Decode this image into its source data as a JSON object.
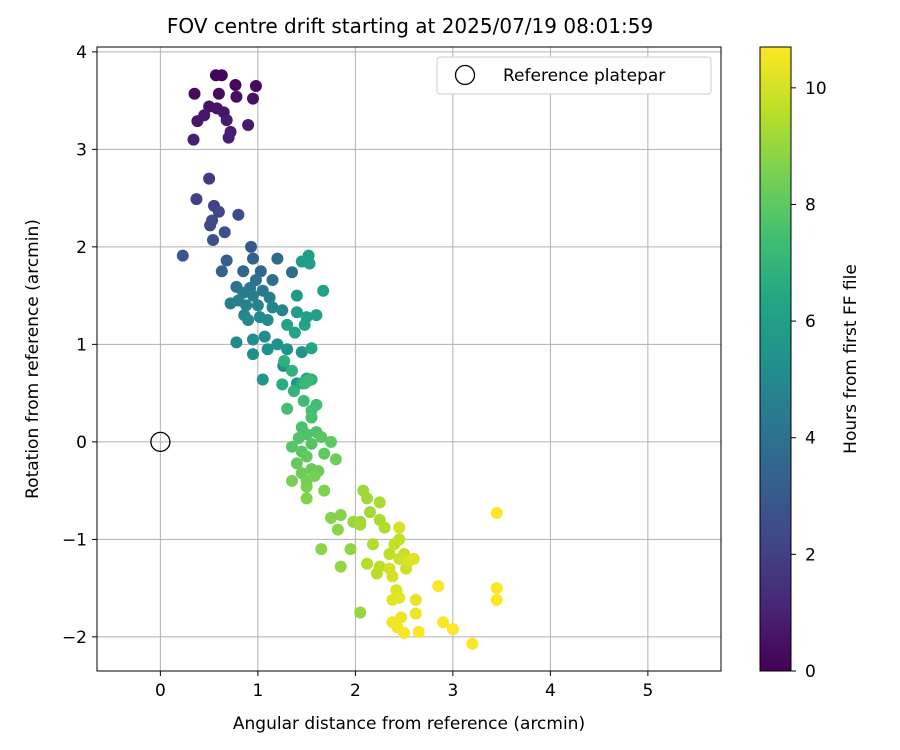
{
  "chart_data": {
    "type": "scatter",
    "title": "FOV centre drift starting at 2025/07/19 08:01:59",
    "xlabel": "Angular distance from reference (arcmin)",
    "ylabel": "Rotation from reference (arcmin)",
    "xlim": [
      -0.65,
      5.75
    ],
    "ylim": [
      -2.35,
      4.05
    ],
    "xticks": [
      0,
      1,
      2,
      3,
      4,
      5
    ],
    "xtick_labels": [
      "0",
      "1",
      "2",
      "3",
      "4",
      "5"
    ],
    "yticks": [
      -2,
      -1,
      0,
      1,
      2,
      3,
      4
    ],
    "ytick_labels": [
      "−2",
      "−1",
      "0",
      "1",
      "2",
      "3",
      "4"
    ],
    "grid": true,
    "legend": {
      "placement": "top-right",
      "label": "Reference platepar"
    },
    "reference_point": {
      "x": 0,
      "y": 0
    },
    "colorbar": {
      "label": "Hours from first FF file",
      "colormap": "viridis",
      "range": [
        0,
        10.7
      ],
      "ticks": [
        0,
        2,
        4,
        6,
        8,
        10
      ],
      "tick_labels": [
        "0",
        "2",
        "4",
        "6",
        "8",
        "10"
      ]
    },
    "points": [
      [
        0.57,
        3.76,
        0.1
      ],
      [
        0.63,
        3.76,
        0.15
      ],
      [
        0.77,
        3.66,
        0.2
      ],
      [
        0.98,
        3.65,
        0.25
      ],
      [
        0.35,
        3.57,
        0.3
      ],
      [
        0.6,
        3.57,
        0.35
      ],
      [
        0.78,
        3.54,
        0.4
      ],
      [
        0.95,
        3.52,
        0.45
      ],
      [
        0.5,
        3.44,
        0.5
      ],
      [
        0.58,
        3.42,
        0.55
      ],
      [
        0.65,
        3.38,
        0.6
      ],
      [
        0.45,
        3.35,
        0.65
      ],
      [
        0.38,
        3.29,
        0.7
      ],
      [
        0.68,
        3.3,
        0.75
      ],
      [
        0.9,
        3.25,
        0.8
      ],
      [
        0.72,
        3.18,
        0.85
      ],
      [
        0.7,
        3.12,
        0.9
      ],
      [
        0.34,
        3.1,
        0.95
      ],
      [
        0.5,
        2.7,
        1.8
      ],
      [
        0.37,
        2.49,
        2.0
      ],
      [
        0.55,
        2.42,
        2.1
      ],
      [
        0.6,
        2.36,
        2.2
      ],
      [
        0.53,
        2.27,
        2.3
      ],
      [
        0.51,
        2.22,
        2.35
      ],
      [
        0.8,
        2.33,
        2.5
      ],
      [
        0.66,
        2.15,
        2.6
      ],
      [
        0.54,
        2.07,
        2.7
      ],
      [
        0.23,
        1.91,
        2.8
      ],
      [
        0.93,
        2.0,
        3.0
      ],
      [
        0.68,
        1.86,
        3.2
      ],
      [
        0.95,
        1.88,
        3.3
      ],
      [
        0.63,
        1.75,
        3.4
      ],
      [
        0.85,
        1.75,
        3.5
      ],
      [
        1.03,
        1.75,
        3.6
      ],
      [
        1.2,
        1.88,
        3.7
      ],
      [
        1.35,
        1.74,
        3.8
      ],
      [
        1.15,
        1.66,
        3.9
      ],
      [
        0.98,
        1.66,
        4.0
      ],
      [
        0.78,
        1.59,
        4.1
      ],
      [
        0.92,
        1.58,
        4.2
      ],
      [
        1.05,
        1.55,
        4.3
      ],
      [
        0.85,
        1.53,
        4.4
      ],
      [
        0.95,
        1.5,
        4.5
      ],
      [
        1.12,
        1.48,
        4.55
      ],
      [
        0.72,
        1.42,
        4.6
      ],
      [
        0.8,
        1.45,
        4.65
      ],
      [
        0.88,
        1.4,
        4.7
      ],
      [
        1.0,
        1.4,
        4.75
      ],
      [
        1.15,
        1.38,
        4.8
      ],
      [
        1.25,
        1.35,
        4.85
      ],
      [
        0.86,
        1.3,
        4.9
      ],
      [
        0.9,
        1.25,
        4.95
      ],
      [
        1.02,
        1.28,
        5.0
      ],
      [
        1.1,
        1.25,
        5.05
      ],
      [
        0.78,
        1.02,
        5.1
      ],
      [
        0.95,
        1.05,
        5.15
      ],
      [
        1.07,
        1.08,
        5.2
      ],
      [
        0.95,
        0.9,
        5.25
      ],
      [
        1.1,
        0.95,
        5.3
      ],
      [
        1.2,
        1.0,
        5.35
      ],
      [
        1.26,
        0.78,
        5.4
      ],
      [
        1.3,
        0.95,
        5.45
      ],
      [
        1.05,
        0.64,
        5.5
      ],
      [
        1.45,
        0.92,
        5.55
      ],
      [
        1.4,
        0.6,
        5.6
      ],
      [
        1.4,
        1.5,
        5.7
      ],
      [
        1.45,
        1.85,
        5.8
      ],
      [
        1.52,
        1.91,
        5.85
      ],
      [
        1.53,
        1.83,
        5.9
      ],
      [
        1.4,
        1.33,
        5.95
      ],
      [
        1.5,
        1.28,
        6.0
      ],
      [
        1.6,
        1.3,
        6.05
      ],
      [
        1.67,
        1.55,
        6.1
      ],
      [
        1.3,
        1.2,
        6.15
      ],
      [
        1.48,
        1.2,
        6.2
      ],
      [
        1.38,
        1.12,
        6.3
      ],
      [
        1.55,
        0.96,
        6.35
      ],
      [
        1.45,
        0.6,
        6.4
      ],
      [
        1.5,
        0.65,
        6.5
      ],
      [
        1.25,
        0.59,
        6.6
      ],
      [
        1.55,
        0.64,
        6.7
      ],
      [
        1.27,
        0.83,
        6.8
      ],
      [
        1.35,
        0.73,
        6.9
      ],
      [
        1.37,
        0.52,
        7.0
      ],
      [
        1.48,
        0.6,
        7.1
      ],
      [
        1.52,
        0.63,
        7.2
      ],
      [
        1.47,
        0.42,
        7.3
      ],
      [
        1.6,
        0.38,
        7.4
      ],
      [
        1.3,
        0.34,
        7.45
      ],
      [
        1.55,
        0.32,
        7.5
      ],
      [
        1.55,
        0.25,
        7.55
      ],
      [
        1.45,
        0.15,
        7.6
      ],
      [
        1.5,
        0.08,
        7.65
      ],
      [
        1.6,
        0.1,
        7.7
      ],
      [
        1.42,
        0.04,
        7.75
      ],
      [
        1.55,
        -0.02,
        7.8
      ],
      [
        1.35,
        -0.05,
        7.85
      ],
      [
        1.45,
        -0.1,
        7.9
      ],
      [
        1.65,
        0.05,
        7.95
      ],
      [
        1.75,
        0.0,
        8.0
      ],
      [
        1.68,
        -0.12,
        8.05
      ],
      [
        1.5,
        -0.15,
        8.1
      ],
      [
        1.4,
        -0.22,
        8.15
      ],
      [
        1.55,
        -0.28,
        8.2
      ],
      [
        1.62,
        -0.3,
        8.25
      ],
      [
        1.8,
        -0.18,
        8.3
      ],
      [
        1.45,
        -0.32,
        8.35
      ],
      [
        1.5,
        -0.4,
        8.4
      ],
      [
        1.58,
        -0.35,
        8.45
      ],
      [
        1.35,
        -0.4,
        8.5
      ],
      [
        1.5,
        -0.46,
        8.55
      ],
      [
        1.68,
        -0.5,
        8.6
      ],
      [
        1.5,
        -0.58,
        8.65
      ],
      [
        1.75,
        -0.78,
        8.7
      ],
      [
        1.85,
        -0.75,
        8.75
      ],
      [
        1.82,
        -0.9,
        8.8
      ],
      [
        1.65,
        -1.1,
        8.85
      ],
      [
        1.95,
        -1.1,
        8.9
      ],
      [
        1.85,
        -1.28,
        8.95
      ],
      [
        1.98,
        -0.82,
        9.0
      ],
      [
        2.05,
        -0.82,
        9.05
      ],
      [
        2.08,
        -0.5,
        9.1
      ],
      [
        2.12,
        -0.58,
        9.15
      ],
      [
        2.15,
        -0.72,
        9.2
      ],
      [
        2.05,
        -0.85,
        9.25
      ],
      [
        2.25,
        -0.62,
        9.3
      ],
      [
        2.25,
        -0.8,
        9.35
      ],
      [
        2.3,
        -0.88,
        9.4
      ],
      [
        2.18,
        -1.05,
        9.45
      ],
      [
        2.12,
        -1.25,
        9.5
      ],
      [
        2.22,
        -1.35,
        9.55
      ],
      [
        2.25,
        -1.28,
        9.6
      ],
      [
        2.35,
        -1.15,
        9.65
      ],
      [
        2.45,
        -1.0,
        9.7
      ],
      [
        2.4,
        -1.05,
        9.75
      ],
      [
        2.5,
        -1.15,
        9.8
      ],
      [
        2.52,
        -1.3,
        9.85
      ],
      [
        2.45,
        -1.2,
        9.9
      ],
      [
        2.35,
        -1.3,
        9.95
      ],
      [
        2.38,
        -1.38,
        10.0
      ],
      [
        2.45,
        -0.88,
        10.05
      ],
      [
        2.55,
        -1.22,
        10.1
      ],
      [
        2.42,
        -1.52,
        10.15
      ],
      [
        2.6,
        -1.2,
        10.2
      ],
      [
        2.38,
        -1.62,
        10.25
      ],
      [
        2.45,
        -1.6,
        10.3
      ],
      [
        2.62,
        -1.62,
        10.35
      ],
      [
        2.47,
        -1.8,
        10.4
      ],
      [
        2.62,
        -1.76,
        10.45
      ],
      [
        2.38,
        -1.85,
        10.5
      ],
      [
        2.43,
        -1.9,
        10.55
      ],
      [
        2.5,
        -1.96,
        10.6
      ],
      [
        2.65,
        -1.95,
        10.62
      ],
      [
        2.85,
        -1.48,
        10.64
      ],
      [
        2.9,
        -1.85,
        10.66
      ],
      [
        3.0,
        -1.92,
        10.67
      ],
      [
        3.2,
        -2.07,
        10.68
      ],
      [
        3.45,
        -1.5,
        10.69
      ],
      [
        3.45,
        -1.62,
        10.7
      ],
      [
        3.45,
        -0.73,
        10.7
      ],
      [
        2.05,
        -1.75,
        9.0
      ]
    ]
  }
}
